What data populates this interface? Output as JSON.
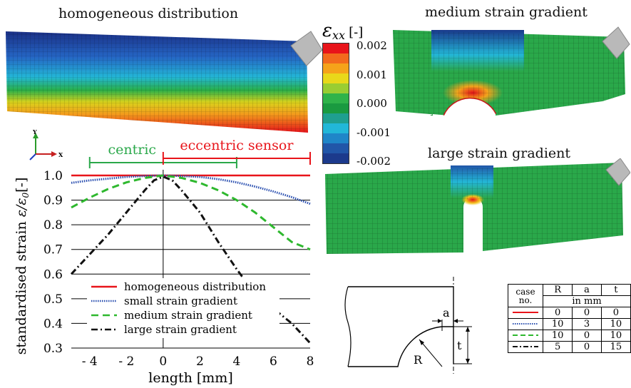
{
  "panels": {
    "homogeneous_title": "homogeneous distribution",
    "medium_title": "medium strain gradient",
    "large_title": "large strain gradient"
  },
  "colorbar": {
    "title": "[-]",
    "symbol_main": "ε",
    "symbol_sub": "xx",
    "ticks": [
      "0.002",
      "0.001",
      "0.000",
      "-0.001",
      "-0.002"
    ],
    "colors": [
      "#e8141a",
      "#f26a1d",
      "#f5a31a",
      "#e9d81a",
      "#9acd32",
      "#2fb34a",
      "#1a9a40",
      "#1f9f8f",
      "#22b7d8",
      "#1f86c8",
      "#2156a8",
      "#1c3a8c"
    ]
  },
  "axis_triad": {
    "y": "Y",
    "x": "X"
  },
  "brackets": {
    "centric": "centric",
    "eccentric": "eccentric sensor"
  },
  "chart_data": {
    "type": "line",
    "xlabel": "length [mm]",
    "ylabel": "standardised strain ε/ε0[-]",
    "ylabel_main": "standardised strain ",
    "ylabel_eps": "ε/ε",
    "ylabel_sub": "0",
    "ylabel_unit": "[-]",
    "xlim": [
      -5,
      8
    ],
    "ylim": [
      0.3,
      1.05
    ],
    "x_ticks": [
      -4,
      -2,
      0,
      2,
      4,
      6,
      8
    ],
    "x_tick_labels": [
      "- 4",
      "- 2",
      "0",
      "2",
      "4",
      "6",
      "8"
    ],
    "y_ticks": [
      1.0,
      0.9,
      0.8,
      0.7,
      0.6,
      0.5,
      0.4,
      0.3
    ],
    "y_tick_labels": [
      "1.0",
      "0.9",
      "0.8",
      "0.7",
      "0.6",
      "0.5",
      "0.4",
      "0.3"
    ],
    "grid": "horizontal",
    "legend_position": "bottom-center",
    "series": [
      {
        "name": "homogeneous distribution",
        "color": "#e8141a",
        "dash": "solid",
        "x": [
          -5,
          8
        ],
        "y": [
          1.0,
          1.0
        ]
      },
      {
        "name": "small strain gradient",
        "color": "#2a4fb0",
        "dash": "dotted",
        "x": [
          -5,
          -4,
          -3,
          -2,
          -1,
          0,
          1,
          2,
          3,
          4,
          5,
          6,
          7,
          8
        ],
        "y": [
          0.97,
          0.98,
          0.987,
          0.994,
          0.998,
          1.0,
          0.998,
          0.994,
          0.985,
          0.972,
          0.955,
          0.935,
          0.912,
          0.885
        ]
      },
      {
        "name": "medium strain gradient",
        "color": "#2eb82e",
        "dash": "dashed",
        "x": [
          -5,
          -4,
          -3,
          -2,
          -1,
          0,
          1,
          2,
          3,
          4,
          5,
          6,
          7,
          8
        ],
        "y": [
          0.87,
          0.91,
          0.945,
          0.972,
          0.99,
          1.0,
          0.99,
          0.97,
          0.94,
          0.9,
          0.85,
          0.79,
          0.73,
          0.7
        ]
      },
      {
        "name": "large strain gradient",
        "color": "#111111",
        "dash": "dashdot",
        "x": [
          -5,
          -4,
          -3,
          -2,
          -1,
          -0.5,
          0,
          0.5,
          1,
          2,
          3,
          4,
          5,
          6,
          7,
          8
        ],
        "y": [
          0.6,
          0.68,
          0.76,
          0.85,
          0.94,
          0.98,
          0.995,
          0.98,
          0.94,
          0.85,
          0.73,
          0.62,
          0.52,
          0.46,
          0.4,
          0.32
        ]
      }
    ]
  },
  "sketch": {
    "label_a": "a",
    "label_t": "t",
    "label_R": "R"
  },
  "case_table": {
    "header": [
      "case no.",
      "R",
      "a",
      "t"
    ],
    "header_case_line1": "case",
    "header_case_line2": "no.",
    "unit_row": "in mm",
    "rows": [
      {
        "dash": "solid",
        "color": "#e8141a",
        "R": "0",
        "a": "0",
        "t": "0"
      },
      {
        "dash": "dotted",
        "color": "#2a4fb0",
        "R": "10",
        "a": "3",
        "t": "10"
      },
      {
        "dash": "dashed",
        "color": "#2eb82e",
        "R": "10",
        "a": "0",
        "t": "10"
      },
      {
        "dash": "dashdot",
        "color": "#111111",
        "R": "5",
        "a": "0",
        "t": "15"
      }
    ]
  }
}
